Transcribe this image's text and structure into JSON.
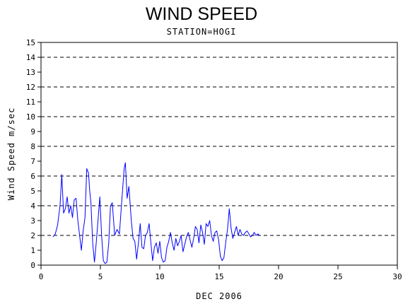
{
  "chart_data": {
    "type": "line",
    "title": "WIND SPEED",
    "subtitle": "STATION=HOGI",
    "xlabel": "DEC 2006",
    "ylabel": "Wind Speed m/sec",
    "xlim": [
      0,
      30
    ],
    "ylim": [
      0,
      15
    ],
    "x_ticks": [
      0,
      5,
      10,
      15,
      20,
      25,
      30
    ],
    "y_ticks": [
      0,
      1,
      2,
      3,
      4,
      5,
      6,
      7,
      8,
      9,
      10,
      11,
      12,
      13,
      14,
      15
    ],
    "grid_y_dashed": [
      0,
      2,
      4,
      6,
      8,
      10,
      12,
      14
    ],
    "line_color": "#0000ff",
    "series": [
      {
        "x": [
          1.0,
          1.2,
          1.4,
          1.6,
          1.75,
          1.9,
          2.05,
          2.2,
          2.35,
          2.5,
          2.65,
          2.8,
          2.95,
          3.1,
          3.25,
          3.4,
          3.55,
          3.7,
          3.85,
          4.0,
          4.1,
          4.2,
          4.35,
          4.5,
          4.65,
          4.8,
          4.95,
          5.1,
          5.25,
          5.4,
          5.55,
          5.7,
          5.85,
          6.0,
          6.2,
          6.4,
          6.6,
          6.8,
          7.0,
          7.1,
          7.25,
          7.4,
          7.6,
          7.75,
          7.9,
          8.05,
          8.2,
          8.35,
          8.5,
          8.65,
          8.8,
          8.95,
          9.1,
          9.25,
          9.4,
          9.55,
          9.7,
          9.85,
          10.0,
          10.15,
          10.3,
          10.45,
          10.6,
          10.75,
          10.9,
          11.05,
          11.2,
          11.35,
          11.5,
          11.65,
          11.8,
          11.95,
          12.1,
          12.25,
          12.4,
          12.55,
          12.7,
          12.85,
          13.0,
          13.15,
          13.3,
          13.45,
          13.6,
          13.75,
          13.9,
          14.05,
          14.2,
          14.35,
          14.5,
          14.65,
          14.8,
          14.95,
          15.1,
          15.25,
          15.4,
          15.55,
          15.7,
          15.85,
          16.0,
          16.15,
          16.3,
          16.45,
          16.6,
          16.75,
          16.9,
          17.05,
          17.2,
          17.35,
          17.5,
          17.65,
          17.8,
          17.95,
          18.1,
          18.25,
          18.4
        ],
        "values": [
          1.9,
          2.1,
          2.7,
          4.0,
          6.1,
          3.5,
          3.8,
          4.6,
          3.5,
          4.0,
          3.2,
          4.4,
          4.5,
          3.0,
          2.0,
          1.0,
          2.3,
          3.2,
          6.5,
          6.2,
          5.0,
          4.2,
          1.5,
          0.2,
          1.5,
          3.0,
          4.6,
          2.0,
          0.3,
          0.1,
          0.2,
          1.5,
          4.0,
          4.2,
          2.0,
          2.4,
          2.1,
          4.3,
          6.5,
          6.9,
          4.5,
          5.3,
          3.0,
          1.8,
          1.6,
          0.4,
          1.5,
          2.8,
          1.2,
          1.1,
          2.0,
          2.2,
          2.8,
          1.5,
          0.3,
          1.2,
          1.5,
          0.8,
          1.6,
          0.5,
          0.2,
          0.3,
          1.2,
          1.6,
          2.2,
          1.5,
          1.0,
          1.8,
          1.3,
          1.6,
          2.0,
          0.9,
          1.4,
          1.9,
          2.2,
          1.7,
          1.2,
          1.8,
          2.6,
          2.4,
          1.5,
          2.7,
          2.2,
          1.4,
          2.8,
          2.6,
          3.0,
          2.0,
          1.6,
          2.2,
          2.3,
          1.7,
          0.6,
          0.3,
          0.5,
          1.5,
          2.4,
          3.8,
          2.5,
          1.8,
          2.2,
          2.6,
          2.0,
          2.4,
          2.1,
          2.0,
          2.2,
          2.3,
          2.1,
          1.9,
          2.0,
          2.2,
          2.0,
          2.1,
          2.0
        ]
      }
    ]
  }
}
